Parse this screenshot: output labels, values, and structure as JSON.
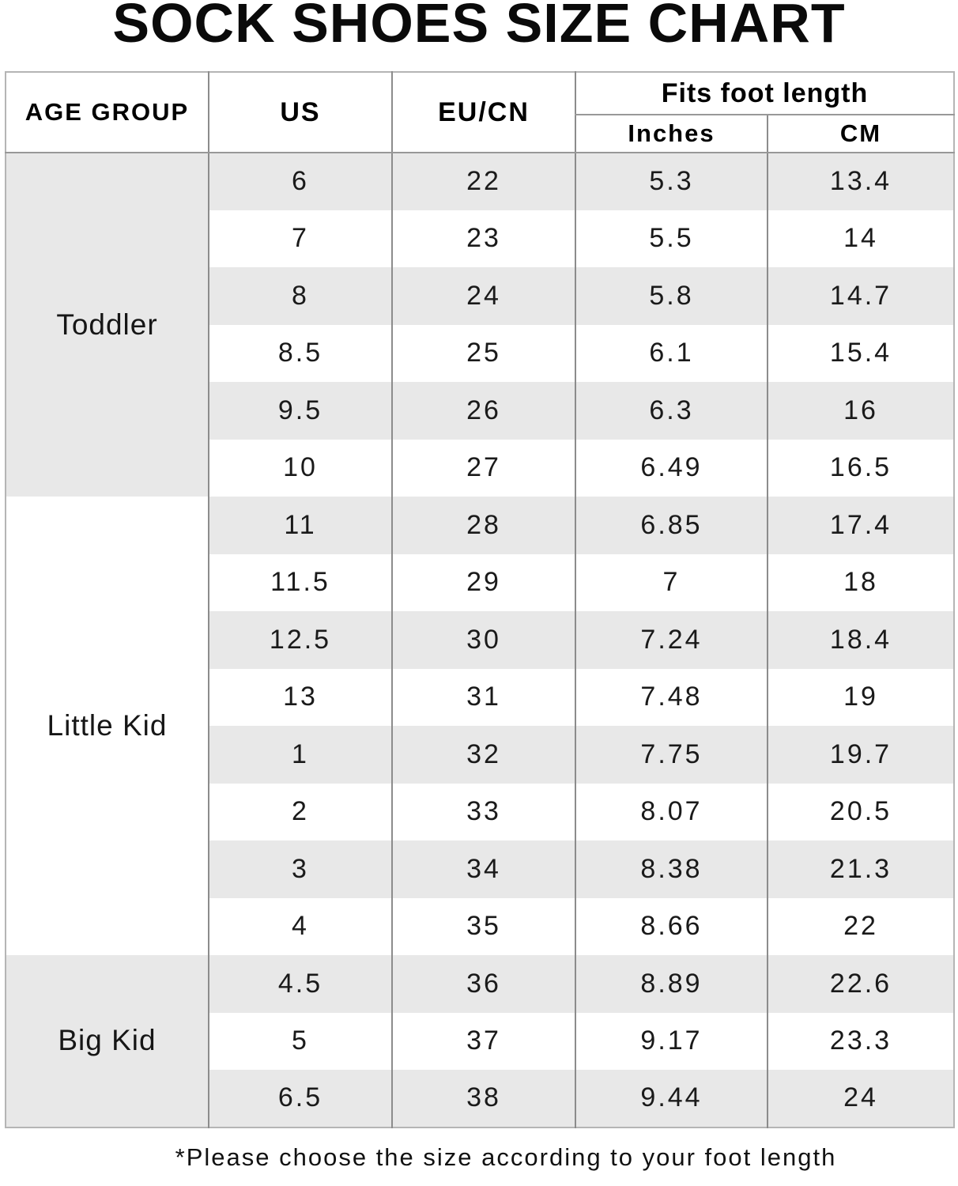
{
  "title": "SOCK SHOES SIZE CHART",
  "footnote": "*Please choose the size according to your foot length",
  "table": {
    "headers": {
      "age_group": "AGE GROUP",
      "us": "US",
      "eu_cn": "EU/CN",
      "fits_foot_length": "Fits foot length",
      "inches": "Inches",
      "cm": "CM"
    },
    "columns": [
      "AGE GROUP",
      "US",
      "EU/CN",
      "Inches",
      "CM"
    ],
    "groups": [
      {
        "label": "Toddler",
        "rows": [
          [
            "6",
            "22",
            "5.3",
            "13.4"
          ],
          [
            "7",
            "23",
            "5.5",
            "14"
          ],
          [
            "8",
            "24",
            "5.8",
            "14.7"
          ],
          [
            "8.5",
            "25",
            "6.1",
            "15.4"
          ],
          [
            "9.5",
            "26",
            "6.3",
            "16"
          ],
          [
            "10",
            "27",
            "6.49",
            "16.5"
          ]
        ]
      },
      {
        "label": "Little Kid",
        "rows": [
          [
            "11",
            "28",
            "6.85",
            "17.4"
          ],
          [
            "11.5",
            "29",
            "7",
            "18"
          ],
          [
            "12.5",
            "30",
            "7.24",
            "18.4"
          ],
          [
            "13",
            "31",
            "7.48",
            "19"
          ],
          [
            "1",
            "32",
            "7.75",
            "19.7"
          ],
          [
            "2",
            "33",
            "8.07",
            "20.5"
          ],
          [
            "3",
            "34",
            "8.38",
            "21.3"
          ],
          [
            "4",
            "35",
            "8.66",
            "22"
          ]
        ]
      },
      {
        "label": "Big Kid",
        "rows": [
          [
            "4.5",
            "36",
            "8.89",
            "22.6"
          ],
          [
            "5",
            "37",
            "9.17",
            "23.3"
          ],
          [
            "6.5",
            "38",
            "9.44",
            "24"
          ]
        ]
      }
    ],
    "colors": {
      "stripe_gray": "#e8e8e8",
      "grid_line": "#8c8c8c",
      "outer_border": "#b5b5b5",
      "text": "#1a1a1a"
    }
  }
}
